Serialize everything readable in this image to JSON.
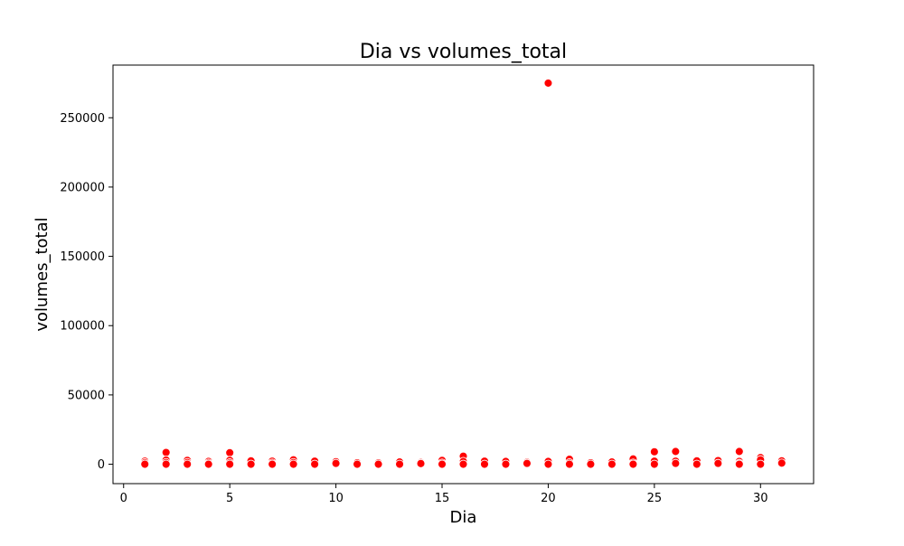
{
  "chart_data": {
    "type": "scatter",
    "title": "Dia vs volumes_total",
    "xlabel": "Dia",
    "ylabel": "volumes_total",
    "xlim": [
      -0.5,
      32.5
    ],
    "ylim": [
      -14000,
      288000
    ],
    "xticks": [
      0,
      5,
      10,
      15,
      20,
      25,
      30
    ],
    "yticks": [
      0,
      50000,
      100000,
      150000,
      200000,
      250000
    ],
    "grid": false,
    "marker_color": "#ff0000",
    "marker_edge": "#ffffff",
    "points": [
      {
        "x": 1,
        "y": 2200
      },
      {
        "x": 1,
        "y": 1000
      },
      {
        "x": 1,
        "y": 0
      },
      {
        "x": 2,
        "y": 8500
      },
      {
        "x": 2,
        "y": 3000
      },
      {
        "x": 2,
        "y": 1200
      },
      {
        "x": 2,
        "y": 0
      },
      {
        "x": 3,
        "y": 2800
      },
      {
        "x": 3,
        "y": 1200
      },
      {
        "x": 3,
        "y": 0
      },
      {
        "x": 4,
        "y": 2000
      },
      {
        "x": 4,
        "y": 800
      },
      {
        "x": 4,
        "y": 0
      },
      {
        "x": 5,
        "y": 8300
      },
      {
        "x": 5,
        "y": 2800
      },
      {
        "x": 5,
        "y": 1000
      },
      {
        "x": 5,
        "y": 0
      },
      {
        "x": 6,
        "y": 2400
      },
      {
        "x": 6,
        "y": 0
      },
      {
        "x": 7,
        "y": 2200
      },
      {
        "x": 7,
        "y": 800
      },
      {
        "x": 7,
        "y": 0
      },
      {
        "x": 8,
        "y": 3200
      },
      {
        "x": 8,
        "y": 1200
      },
      {
        "x": 8,
        "y": 0
      },
      {
        "x": 9,
        "y": 2200
      },
      {
        "x": 9,
        "y": 0
      },
      {
        "x": 10,
        "y": 1800
      },
      {
        "x": 10,
        "y": 600
      },
      {
        "x": 11,
        "y": 1000
      },
      {
        "x": 11,
        "y": 0
      },
      {
        "x": 12,
        "y": 900
      },
      {
        "x": 12,
        "y": 0
      },
      {
        "x": 13,
        "y": 1600
      },
      {
        "x": 13,
        "y": 0
      },
      {
        "x": 14,
        "y": 1200
      },
      {
        "x": 14,
        "y": 500
      },
      {
        "x": 15,
        "y": 2800
      },
      {
        "x": 15,
        "y": 800
      },
      {
        "x": 15,
        "y": 0
      },
      {
        "x": 16,
        "y": 5800
      },
      {
        "x": 16,
        "y": 2000
      },
      {
        "x": 16,
        "y": 0
      },
      {
        "x": 17,
        "y": 2200
      },
      {
        "x": 17,
        "y": 0
      },
      {
        "x": 18,
        "y": 2000
      },
      {
        "x": 18,
        "y": 0
      },
      {
        "x": 19,
        "y": 1400
      },
      {
        "x": 19,
        "y": 600
      },
      {
        "x": 20,
        "y": 275000
      },
      {
        "x": 20,
        "y": 2000
      },
      {
        "x": 20,
        "y": 0
      },
      {
        "x": 21,
        "y": 3600
      },
      {
        "x": 21,
        "y": 1000
      },
      {
        "x": 21,
        "y": 0
      },
      {
        "x": 22,
        "y": 1000
      },
      {
        "x": 22,
        "y": 0
      },
      {
        "x": 23,
        "y": 1600
      },
      {
        "x": 23,
        "y": 0
      },
      {
        "x": 24,
        "y": 3800
      },
      {
        "x": 24,
        "y": 800
      },
      {
        "x": 24,
        "y": 0
      },
      {
        "x": 25,
        "y": 9000
      },
      {
        "x": 25,
        "y": 2200
      },
      {
        "x": 25,
        "y": 0
      },
      {
        "x": 26,
        "y": 9200
      },
      {
        "x": 26,
        "y": 2200
      },
      {
        "x": 26,
        "y": 600
      },
      {
        "x": 27,
        "y": 2400
      },
      {
        "x": 27,
        "y": 0
      },
      {
        "x": 28,
        "y": 2600
      },
      {
        "x": 28,
        "y": 600
      },
      {
        "x": 29,
        "y": 9200
      },
      {
        "x": 29,
        "y": 2000
      },
      {
        "x": 29,
        "y": 600
      },
      {
        "x": 29,
        "y": 0
      },
      {
        "x": 30,
        "y": 4800
      },
      {
        "x": 30,
        "y": 3200
      },
      {
        "x": 30,
        "y": 0
      },
      {
        "x": 31,
        "y": 2400
      },
      {
        "x": 31,
        "y": 800
      }
    ]
  }
}
